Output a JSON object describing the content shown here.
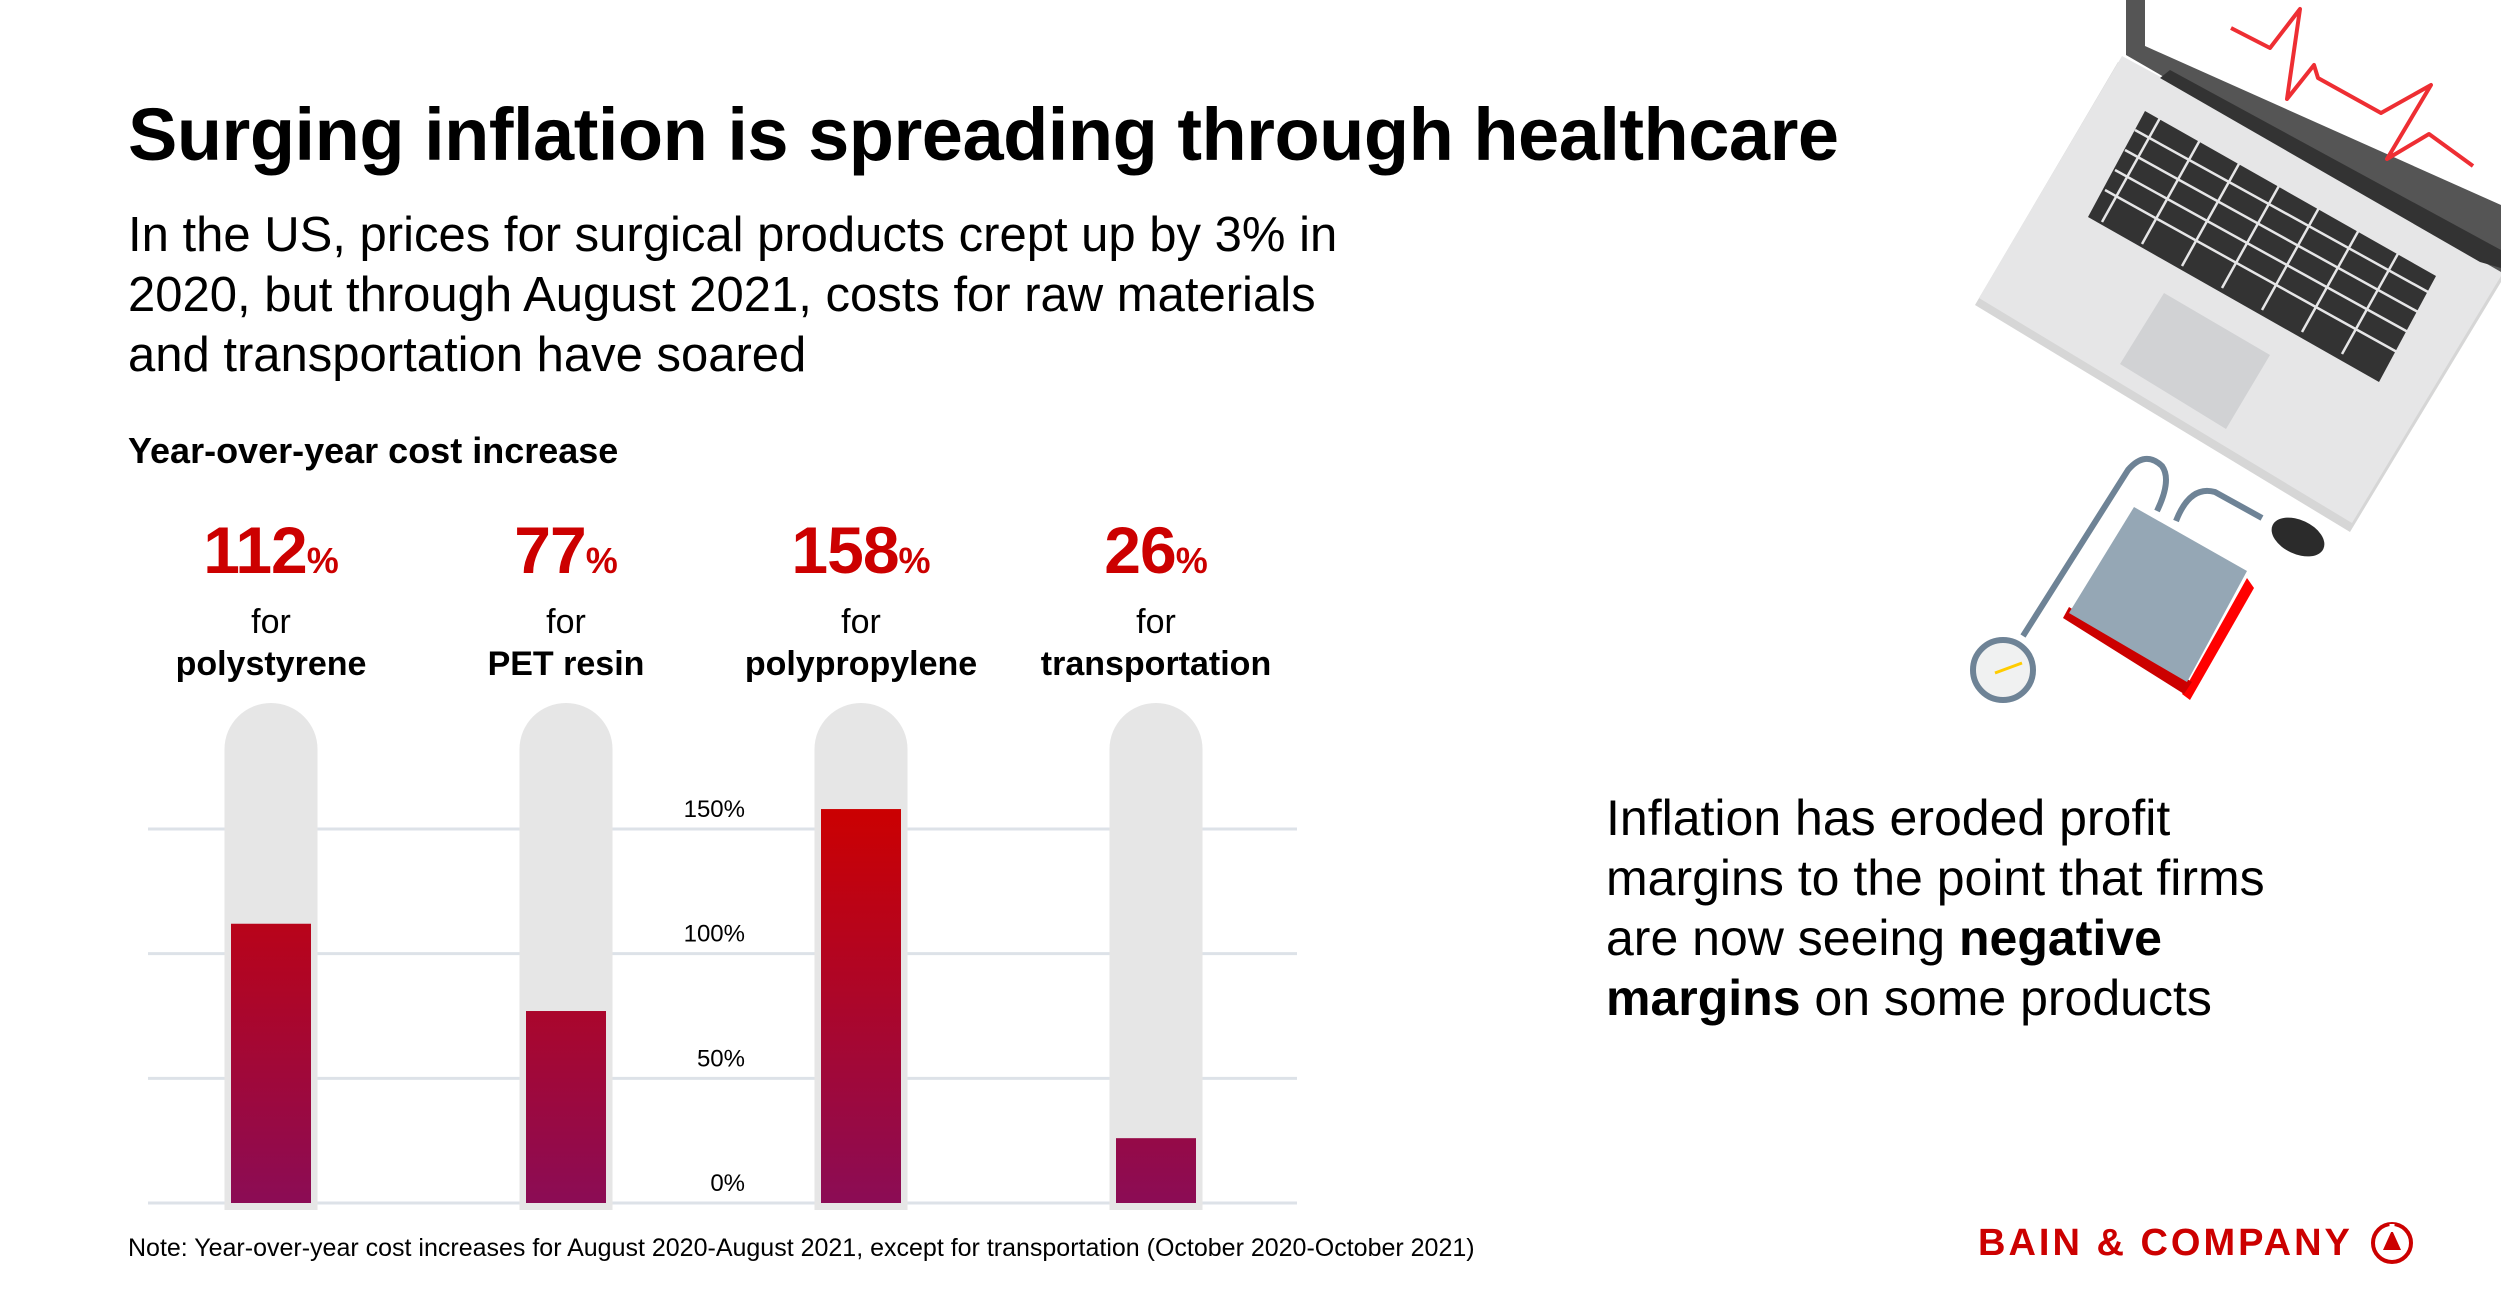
{
  "title": "Surging inflation is spreading through healthcare",
  "subtitle": "In the US, prices for surgical products crept up by 3% in 2020, but through August 2021, costs for raw materials and transportation have soared",
  "side_text": {
    "pre": "Inflation has eroded profit margins to the point that firms are now seeing ",
    "bold": "negative margins",
    "post": " on some products"
  },
  "note": "Note: Year-over-year cost increases for August 2020-August 2021, except for transportation (October 2020-October 2021)",
  "logo_text": "BAIN & COMPANY",
  "colors": {
    "accent": "#cc0000",
    "bar_bottom": "#8b0c55",
    "track": "#e6e6e6",
    "grid": "#dde2e8"
  },
  "chart_data": {
    "type": "bar",
    "title": "Year-over-year cost increase",
    "categories": [
      "polystyrene",
      "PET resin",
      "polypropylene",
      "transportation"
    ],
    "values": [
      112,
      77,
      158,
      26
    ],
    "value_labels": [
      "112",
      "77",
      "158",
      "26"
    ],
    "unit": "%",
    "connector": "for",
    "ylim": [
      0,
      200
    ],
    "yticks": [
      0,
      50,
      100,
      150
    ],
    "ytick_labels": [
      "0%",
      "50%",
      "100%",
      "150%"
    ],
    "grid": true,
    "xlabel": "",
    "ylabel": ""
  }
}
